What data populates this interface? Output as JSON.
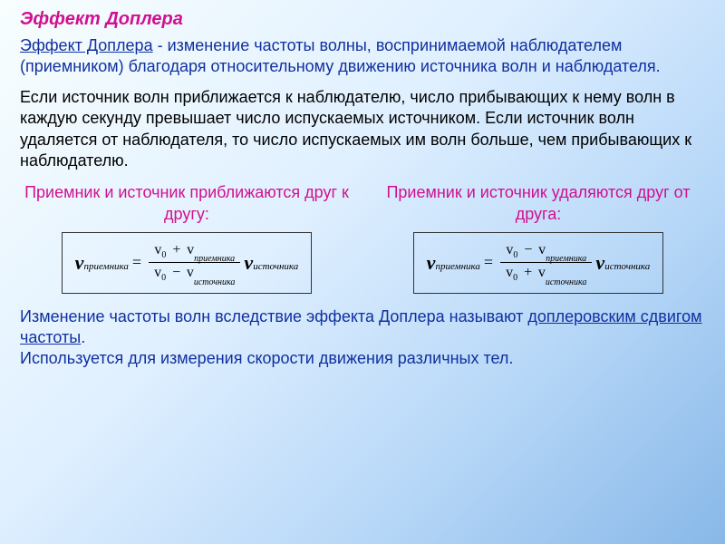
{
  "title_color": "#d01090",
  "def_color": "#1030a0",
  "body_color": "#000000",
  "background_gradient": [
    "#f8fefe",
    "#e0f0ff",
    "#b8d8f8",
    "#88b8e8"
  ],
  "title": "Эффект Доплера",
  "definition_lead": "Эффект Доплера",
  "definition_rest": " - изменение частоты волны, воспринимаемой наблюдателем (приемником) благодаря относительному движению источника волн и наблюдателя.",
  "explanation": "Если источник волн приближается к наблюдателю, число прибывающих к нему волн в каждую секунду превышает число испускаемых источником. Если источник волн удаляется от наблюдателя, то число испускаемых им волн больше, чем прибывающих к наблюдателю.",
  "col1_label": "Приемник и источник приближаются друг к другу:",
  "col2_label": "Приемник и источник удаляются друг от друга:",
  "formula": {
    "nu_symbol": "ν",
    "sub_receiver": "приемника",
    "sub_source": "источника",
    "v_symbol": "v",
    "v0_sub": "0",
    "f1_num_op": "+",
    "f1_den_op": "−",
    "f2_num_op": "−",
    "f2_den_op": "+"
  },
  "conclusion_part1": "Изменение частоты волн вследствие эффекта Доплера называют ",
  "conclusion_underline": "доплеровским сдвигом частоты",
  "conclusion_part2": ".",
  "conclusion_last": "Используется для измерения скорости движения различных тел."
}
